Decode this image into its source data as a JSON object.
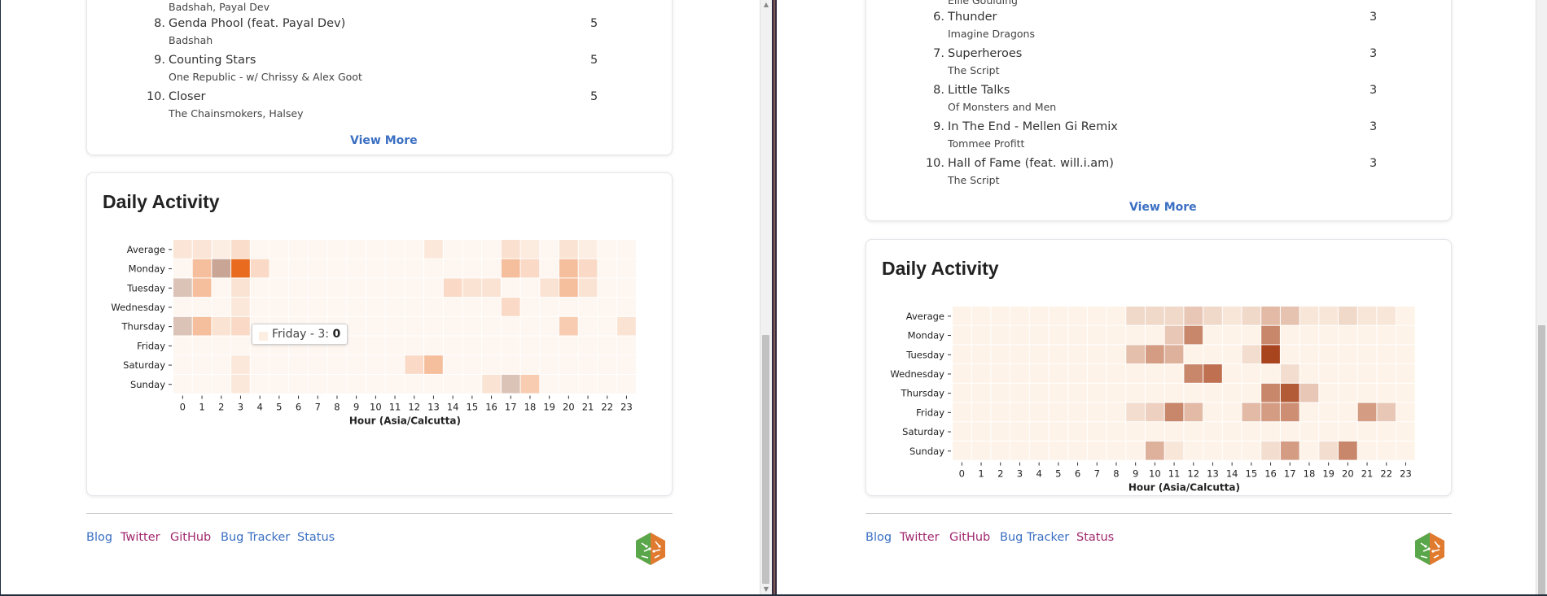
{
  "left_panel": {
    "partial_top_artist": "Badshah, Payal Dev",
    "tracks": [
      {
        "rank": "8.",
        "title": "Genda Phool (feat. Payal Dev)",
        "artist": "Badshah",
        "count": "5"
      },
      {
        "rank": "9.",
        "title": "Counting Stars",
        "artist": "One Republic - w/ Chrissy & Alex Goot",
        "count": "5"
      },
      {
        "rank": "10.",
        "title": "Closer",
        "artist": "The Chainsmokers, Halsey",
        "count": "5"
      }
    ],
    "view_more": "View More",
    "activity": {
      "heading": "Daily Activity",
      "tooltip": {
        "label": "Friday - 3:",
        "value": "0"
      }
    }
  },
  "right_panel": {
    "partial_top_artist": "Ellie Goulding",
    "tracks": [
      {
        "rank": "6.",
        "title": "Thunder",
        "artist": "Imagine Dragons",
        "count": "3"
      },
      {
        "rank": "7.",
        "title": "Superheroes",
        "artist": "The Script",
        "count": "3"
      },
      {
        "rank": "8.",
        "title": "Little Talks",
        "artist": "Of Monsters and Men",
        "count": "3"
      },
      {
        "rank": "9.",
        "title": "In The End - Mellen Gi Remix",
        "artist": "Tommee Profitt",
        "count": "3"
      },
      {
        "rank": "10.",
        "title": "Hall of Fame (feat. will.i.am)",
        "artist": "The Script",
        "count": "3"
      }
    ],
    "view_more": "View More",
    "activity": {
      "heading": "Daily Activity"
    }
  },
  "footer": {
    "links": [
      {
        "label": "Blog",
        "color": "#3a6fc2"
      },
      {
        "label": "Twitter",
        "color": "#a0286e"
      },
      {
        "label": "GitHub",
        "color": "#a0286e"
      },
      {
        "label": "Bug Tracker",
        "color": "#3a6fc2"
      },
      {
        "label": "Status",
        "color": "#3a6fc2"
      }
    ],
    "right_links_status_color": "#a0286e",
    "logo_icon": "hexagon-logo-icon"
  },
  "chart_data": [
    {
      "type": "heatmap",
      "title": "Daily Activity",
      "xlabel": "Hour (Asia/Calcutta)",
      "ylabel": "",
      "x": [
        0,
        1,
        2,
        3,
        4,
        5,
        6,
        7,
        8,
        9,
        10,
        11,
        12,
        13,
        14,
        15,
        16,
        17,
        18,
        19,
        20,
        21,
        22,
        23
      ],
      "y": [
        "Average",
        "Monday",
        "Tuesday",
        "Wednesday",
        "Thursday",
        "Friday",
        "Saturday",
        "Sunday"
      ],
      "colors": {
        "low": "#fef6f0",
        "high": "#e86b1f",
        "selected": "#c9b0a6"
      },
      "values": [
        [
          0.6,
          0.6,
          0.3,
          0.9,
          0,
          0,
          0,
          0,
          0,
          0,
          0,
          0,
          0,
          0.5,
          0,
          0,
          0,
          0.8,
          0.4,
          0,
          0.7,
          0.3,
          0,
          0
        ],
        [
          0,
          2,
          3,
          5,
          1,
          0,
          0,
          0,
          0,
          0,
          0,
          0,
          0,
          0,
          0,
          0,
          0,
          2,
          1,
          0,
          2,
          1,
          0,
          0
        ],
        [
          2,
          2,
          0,
          0.7,
          0,
          0,
          0,
          0,
          0,
          0,
          0,
          0,
          0,
          0,
          1,
          0.7,
          0.7,
          0,
          0,
          0.7,
          2,
          0.7,
          0,
          0
        ],
        [
          0,
          0,
          0,
          0.5,
          0,
          0,
          0,
          0,
          0,
          0,
          0,
          0,
          0,
          0,
          0,
          0,
          0,
          1,
          0,
          0,
          0,
          0,
          0,
          0
        ],
        [
          2,
          2,
          0.7,
          1,
          0,
          0,
          0,
          0,
          0,
          0,
          0,
          0,
          0,
          0,
          0,
          0,
          0,
          0,
          0,
          0,
          1.5,
          0,
          0,
          0.7
        ],
        [
          0,
          0,
          0,
          0,
          0,
          0,
          0,
          0,
          0,
          0,
          0,
          0,
          0,
          0,
          0,
          0,
          0,
          0,
          0,
          0,
          0,
          0,
          0,
          0
        ],
        [
          0,
          0,
          0,
          0.5,
          0,
          0,
          0,
          0,
          0,
          0,
          0,
          0,
          1,
          2,
          0,
          0,
          0,
          0,
          0,
          0,
          0,
          0,
          0,
          0
        ],
        [
          0,
          0,
          0,
          0.5,
          0,
          0,
          0,
          0,
          0,
          0,
          0,
          0,
          0,
          0,
          0,
          0,
          0.7,
          2,
          1.5,
          0,
          0,
          0,
          0,
          0
        ]
      ],
      "highlighted_cells": [
        [
          1,
          2
        ],
        [
          2,
          0
        ],
        [
          4,
          0
        ],
        [
          7,
          17
        ]
      ]
    },
    {
      "type": "heatmap",
      "title": "Daily Activity",
      "xlabel": "Hour (Asia/Calcutta)",
      "ylabel": "",
      "x": [
        0,
        1,
        2,
        3,
        4,
        5,
        6,
        7,
        8,
        9,
        10,
        11,
        12,
        13,
        14,
        15,
        16,
        17,
        18,
        19,
        20,
        21,
        22,
        23
      ],
      "y": [
        "Average",
        "Monday",
        "Tuesday",
        "Wednesday",
        "Thursday",
        "Friday",
        "Saturday",
        "Sunday"
      ],
      "colors": {
        "low": "#fef3e8",
        "high": "#a8441e"
      },
      "values": [
        [
          0,
          0,
          0,
          0,
          0,
          0,
          0,
          0,
          0,
          0.6,
          0.6,
          0.6,
          1,
          0.6,
          0.3,
          0.6,
          1.3,
          1.1,
          0.3,
          0.3,
          0.6,
          0.3,
          0.3,
          0
        ],
        [
          0,
          0,
          0,
          0,
          0,
          0,
          0,
          0,
          0,
          0,
          0,
          1,
          2.5,
          0,
          0,
          0,
          2.5,
          0,
          0,
          0,
          0,
          0,
          0,
          0
        ],
        [
          0,
          0,
          0,
          0,
          0,
          0,
          0,
          0,
          0,
          1.2,
          2,
          1.5,
          0,
          0,
          0,
          0.5,
          4,
          0,
          0,
          0,
          0,
          0,
          0,
          0
        ],
        [
          0,
          0,
          0,
          0,
          0,
          0,
          0,
          0,
          0,
          0,
          0,
          0,
          2.5,
          3,
          0,
          0,
          0,
          0.5,
          0,
          0,
          0,
          0,
          0,
          0
        ],
        [
          0,
          0,
          0,
          0,
          0,
          0,
          0,
          0,
          0,
          0,
          0,
          0,
          0,
          0,
          0,
          0,
          2.5,
          3.5,
          1,
          0,
          0,
          0,
          0,
          0
        ],
        [
          0,
          0,
          0,
          0,
          0,
          0,
          0,
          0,
          0,
          0.5,
          0.8,
          2.5,
          1.3,
          0,
          0,
          1.3,
          2,
          2.3,
          0,
          0,
          0,
          2,
          1,
          0
        ],
        [
          0,
          0,
          0,
          0,
          0,
          0,
          0,
          0,
          0,
          0,
          0,
          0,
          0,
          0,
          0,
          0,
          0,
          0,
          0,
          0,
          0,
          0,
          0,
          0
        ],
        [
          0,
          0,
          0,
          0,
          0,
          0,
          0,
          0,
          0,
          0,
          1.5,
          0.3,
          0,
          0,
          0,
          0,
          0.5,
          2,
          0,
          0.5,
          2.5,
          0,
          0,
          0
        ]
      ]
    }
  ]
}
